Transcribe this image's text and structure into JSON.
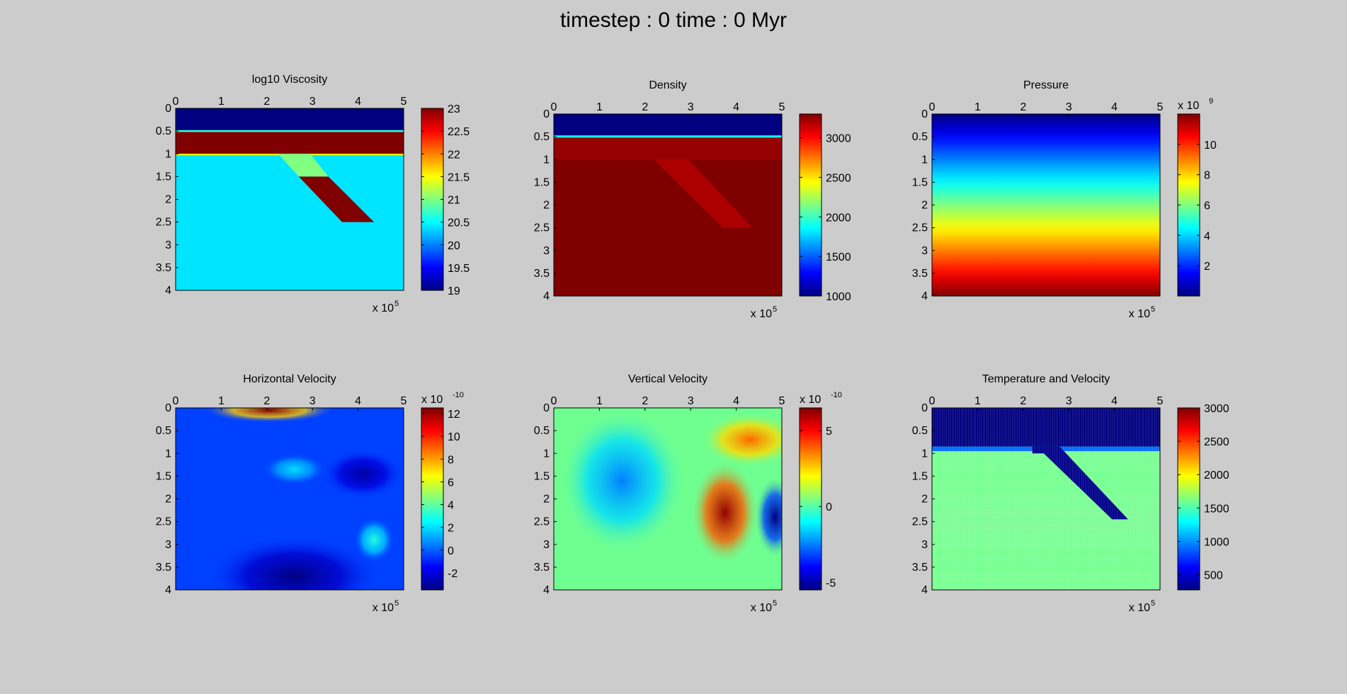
{
  "figure_title": "timestep : 0   time : 0 Myr",
  "colormap": "jet",
  "background_color": "#cccccc",
  "chart_data": [
    {
      "type": "heatmap",
      "title": "log10 Viscosity",
      "xticks": [
        "0",
        "1",
        "2",
        "3",
        "4",
        "5"
      ],
      "yticks": [
        "0",
        "0.5",
        "1",
        "1.5",
        "2",
        "2.5",
        "3",
        "3.5",
        "4"
      ],
      "x_exponent": {
        "base": "x 10",
        "power": "5"
      },
      "xlim": [
        0,
        5
      ],
      "ylim": [
        0,
        4
      ],
      "x_axis_position": "top",
      "y_reversed": true,
      "colorbar": {
        "min": 19,
        "max": 23,
        "ticks": [
          "19",
          "19.5",
          "20",
          "20.5",
          "21",
          "21.5",
          "22",
          "22.5",
          "23"
        ],
        "exponent": null
      },
      "field": {
        "background": 20.4,
        "regions": [
          {
            "shape": "band",
            "y": [
              0,
              0.48
            ],
            "value": 19
          },
          {
            "shape": "band",
            "y": [
              0.48,
              0.52
            ],
            "value": 20.7
          },
          {
            "shape": "band",
            "y": [
              0.52,
              1.0
            ],
            "value": 23
          },
          {
            "shape": "band",
            "y": [
              1.0,
              1.03
            ],
            "value": 21.5
          },
          {
            "shape": "polygon",
            "points": [
              [
                2.25,
                1.0
              ],
              [
                2.95,
                1.0
              ],
              [
                3.35,
                1.5
              ],
              [
                2.7,
                1.5
              ]
            ],
            "value": 21.0
          },
          {
            "shape": "polygon",
            "points": [
              [
                2.7,
                1.5
              ],
              [
                3.35,
                1.5
              ],
              [
                4.35,
                2.5
              ],
              [
                3.65,
                2.5
              ]
            ],
            "value": 23
          }
        ]
      }
    },
    {
      "type": "heatmap",
      "title": "Density",
      "xticks": [
        "0",
        "1",
        "2",
        "3",
        "4",
        "5"
      ],
      "yticks": [
        "0",
        "0.5",
        "1",
        "1.5",
        "2",
        "2.5",
        "3",
        "3.5",
        "4"
      ],
      "x_exponent": {
        "base": "x 10",
        "power": "5"
      },
      "xlim": [
        0,
        5
      ],
      "ylim": [
        0,
        4
      ],
      "x_axis_position": "top",
      "y_reversed": true,
      "colorbar": {
        "min": 1000,
        "max": 3300,
        "ticks": [
          "1000",
          "1500",
          "2000",
          "2500",
          "3000"
        ],
        "exponent": null
      },
      "field": {
        "background": 3300,
        "regions": [
          {
            "shape": "band",
            "y": [
              0,
              0.47
            ],
            "value": 1000
          },
          {
            "shape": "band",
            "y": [
              0.47,
              0.52
            ],
            "value": 1900
          },
          {
            "shape": "band",
            "y": [
              0.52,
              1.0
            ],
            "value": 3250
          },
          {
            "shape": "polygon",
            "points": [
              [
                2.2,
                1.0
              ],
              [
                2.95,
                1.0
              ],
              [
                4.35,
                2.5
              ],
              [
                3.7,
                2.5
              ]
            ],
            "value": 3200
          }
        ]
      }
    },
    {
      "type": "heatmap",
      "title": "Pressure",
      "xticks": [
        "0",
        "1",
        "2",
        "3",
        "4",
        "5"
      ],
      "yticks": [
        "0",
        "0.5",
        "1",
        "1.5",
        "2",
        "2.5",
        "3",
        "3.5",
        "4"
      ],
      "x_exponent": {
        "base": "x 10",
        "power": "5"
      },
      "xlim": [
        0,
        5
      ],
      "ylim": [
        0,
        4
      ],
      "x_axis_position": "top",
      "y_reversed": true,
      "colorbar": {
        "min": 0,
        "max": 12,
        "ticks": [
          "2",
          "4",
          "6",
          "8",
          "10"
        ],
        "exponent": {
          "base": "x 10",
          "power": "9"
        }
      },
      "field": {
        "gradient": "vertical",
        "top": 0,
        "bottom": 12
      }
    },
    {
      "type": "heatmap",
      "title": "Horizontal Velocity",
      "xticks": [
        "0",
        "1",
        "2",
        "3",
        "4",
        "5"
      ],
      "yticks": [
        "0",
        "0.5",
        "1",
        "1.5",
        "2",
        "2.5",
        "3",
        "3.5",
        "4"
      ],
      "x_exponent": {
        "base": "x 10",
        "power": "5"
      },
      "xlim": [
        0,
        5
      ],
      "ylim": [
        0,
        4
      ],
      "x_axis_position": "top",
      "y_reversed": true,
      "colorbar": {
        "min": -3.5,
        "max": 12.5,
        "ticks": [
          "-2",
          "0",
          "2",
          "4",
          "6",
          "8",
          "10",
          "12"
        ],
        "exponent": {
          "base": "x 10",
          "power": "-10"
        }
      },
      "field": {
        "background": -0.5,
        "blobs": [
          {
            "x": 2.05,
            "y": 0.05,
            "rx": 1.45,
            "ry": 0.28,
            "value": 12.5
          },
          {
            "x": 2.6,
            "y": 1.35,
            "rx": 0.7,
            "ry": 0.35,
            "value": 2.0
          },
          {
            "x": 4.35,
            "y": 2.9,
            "rx": 0.45,
            "ry": 0.5,
            "value": 3.0
          },
          {
            "x": 4.1,
            "y": 1.45,
            "rx": 0.9,
            "ry": 0.55,
            "value": -3.0
          },
          {
            "x": 2.6,
            "y": 3.7,
            "rx": 1.9,
            "ry": 0.9,
            "value": -3.5
          }
        ]
      }
    },
    {
      "type": "heatmap",
      "title": "Vertical Velocity",
      "xticks": [
        "0",
        "1",
        "2",
        "3",
        "4",
        "5"
      ],
      "yticks": [
        "0",
        "0.5",
        "1",
        "1.5",
        "2",
        "2.5",
        "3",
        "3.5",
        "4"
      ],
      "x_exponent": {
        "base": "x 10",
        "power": "5"
      },
      "xlim": [
        0,
        5
      ],
      "ylim": [
        0,
        4
      ],
      "x_axis_position": "top",
      "y_reversed": true,
      "colorbar": {
        "min": -5.5,
        "max": 6.5,
        "ticks": [
          "-5",
          "0",
          "5"
        ],
        "exponent": {
          "base": "x 10",
          "power": "-10"
        }
      },
      "field": {
        "background": 0.3,
        "blobs": [
          {
            "x": 3.75,
            "y": 2.3,
            "rx": 0.75,
            "ry": 1.15,
            "value": 6.3
          },
          {
            "x": 4.85,
            "y": 2.4,
            "rx": 0.45,
            "ry": 0.9,
            "value": -5.5
          },
          {
            "x": 4.3,
            "y": 0.7,
            "rx": 1.1,
            "ry": 0.6,
            "value": 3.8
          },
          {
            "x": 1.5,
            "y": 1.6,
            "rx": 1.4,
            "ry": 1.6,
            "value": -2.5
          }
        ]
      }
    },
    {
      "type": "heatmap",
      "title": "Temperature and Velocity",
      "xticks": [
        "0",
        "1",
        "2",
        "3",
        "4",
        "5"
      ],
      "yticks": [
        "0",
        "0.5",
        "1",
        "1.5",
        "2",
        "2.5",
        "3",
        "3.5",
        "4"
      ],
      "x_exponent": {
        "base": "x 10",
        "power": "5"
      },
      "xlim": [
        0,
        5
      ],
      "ylim": [
        0,
        4
      ],
      "x_axis_position": "top",
      "y_reversed": true,
      "colorbar": {
        "min": 273,
        "max": 3000,
        "ticks": [
          "500",
          "1000",
          "1500",
          "2000",
          "2500",
          "3000"
        ],
        "exponent": null
      },
      "field": {
        "background": 1600,
        "quiver": true,
        "regions": [
          {
            "shape": "band",
            "y": [
              0,
              0.85
            ],
            "value": 273
          },
          {
            "shape": "band",
            "y": [
              0.85,
              0.95
            ],
            "value": 900
          },
          {
            "shape": "polygon",
            "points": [
              [
                2.2,
                0.85
              ],
              [
                2.8,
                0.85
              ],
              [
                4.3,
                2.45
              ],
              [
                3.95,
                2.45
              ],
              [
                2.45,
                1.0
              ],
              [
                2.2,
                1.0
              ]
            ],
            "value": 300
          }
        ]
      }
    }
  ]
}
